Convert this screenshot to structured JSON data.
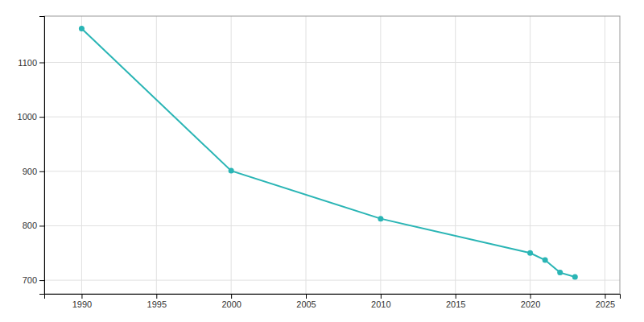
{
  "chart_data": {
    "type": "line",
    "x": [
      1990,
      2000,
      2010,
      2020,
      2021,
      2022,
      2023
    ],
    "values": [
      1162,
      901,
      813,
      750,
      737,
      714,
      706
    ],
    "color": "#2ab5b5",
    "marker": "circle",
    "xlim": [
      1987.5,
      2026
    ],
    "ylim": [
      675,
      1185
    ],
    "xticks": [
      1990,
      1995,
      2000,
      2005,
      2010,
      2015,
      2020,
      2025
    ],
    "yticks": [
      700,
      800,
      900,
      1000,
      1100
    ],
    "grid": true
  }
}
